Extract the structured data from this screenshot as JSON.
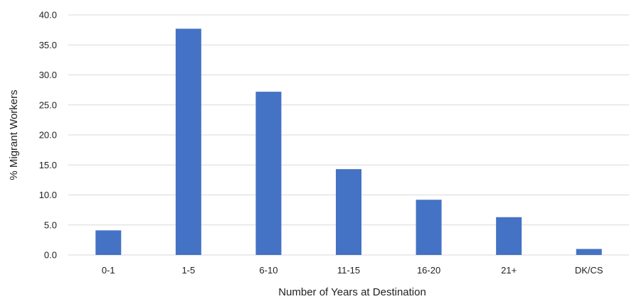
{
  "chart_data": {
    "type": "bar",
    "title": "",
    "xlabel": "Number of Years at Destination",
    "ylabel": "% Migrant Workers",
    "categories": [
      "0-1",
      "1-5",
      "6-10",
      "11-15",
      "16-20",
      "21+",
      "DK/CS"
    ],
    "values": [
      4.1,
      37.7,
      27.2,
      14.3,
      9.2,
      6.3,
      1.0
    ],
    "ylim": [
      0,
      40
    ],
    "yticks": [
      "0.0",
      "5.0",
      "10.0",
      "15.0",
      "20.0",
      "25.0",
      "30.0",
      "35.0",
      "40.0"
    ],
    "grid": true,
    "legend": "none",
    "bar_color": "#4472c4"
  }
}
